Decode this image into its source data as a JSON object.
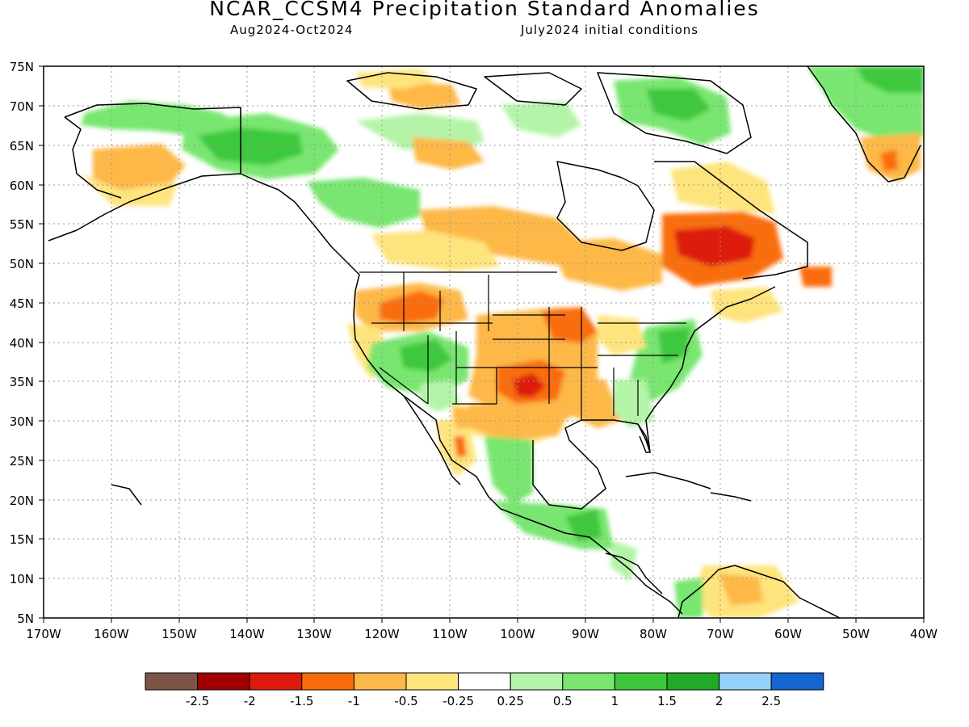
{
  "header": {
    "title": "NCAR_CCSM4 Precipitation Standard Anomalies",
    "period": "Aug2024-Oct2024",
    "init": "July2024 initial conditions"
  },
  "axes": {
    "lat_labels": [
      "75N",
      "70N",
      "65N",
      "60N",
      "55N",
      "50N",
      "45N",
      "40N",
      "35N",
      "30N",
      "25N",
      "20N",
      "15N",
      "10N",
      "5N"
    ],
    "lon_labels": [
      "170W",
      "160W",
      "150W",
      "140W",
      "130W",
      "120W",
      "110W",
      "100W",
      "90W",
      "80W",
      "70W",
      "60W",
      "50W",
      "40W"
    ]
  },
  "colorbar": {
    "colors": [
      "#7d5548",
      "#a00000",
      "#dd1a0c",
      "#fa6d0d",
      "#fdb847",
      "#fee47d",
      "#ffffff",
      "#b4f4a8",
      "#78e66f",
      "#3dc83c",
      "#21a928",
      "#96d1fa",
      "#1464d2"
    ],
    "labels": [
      "-2.5",
      "-2",
      "-1.5",
      "-1",
      "-0.5",
      "-0.25",
      "0.25",
      "0.5",
      "1",
      "1.5",
      "2",
      "2.5"
    ]
  }
}
